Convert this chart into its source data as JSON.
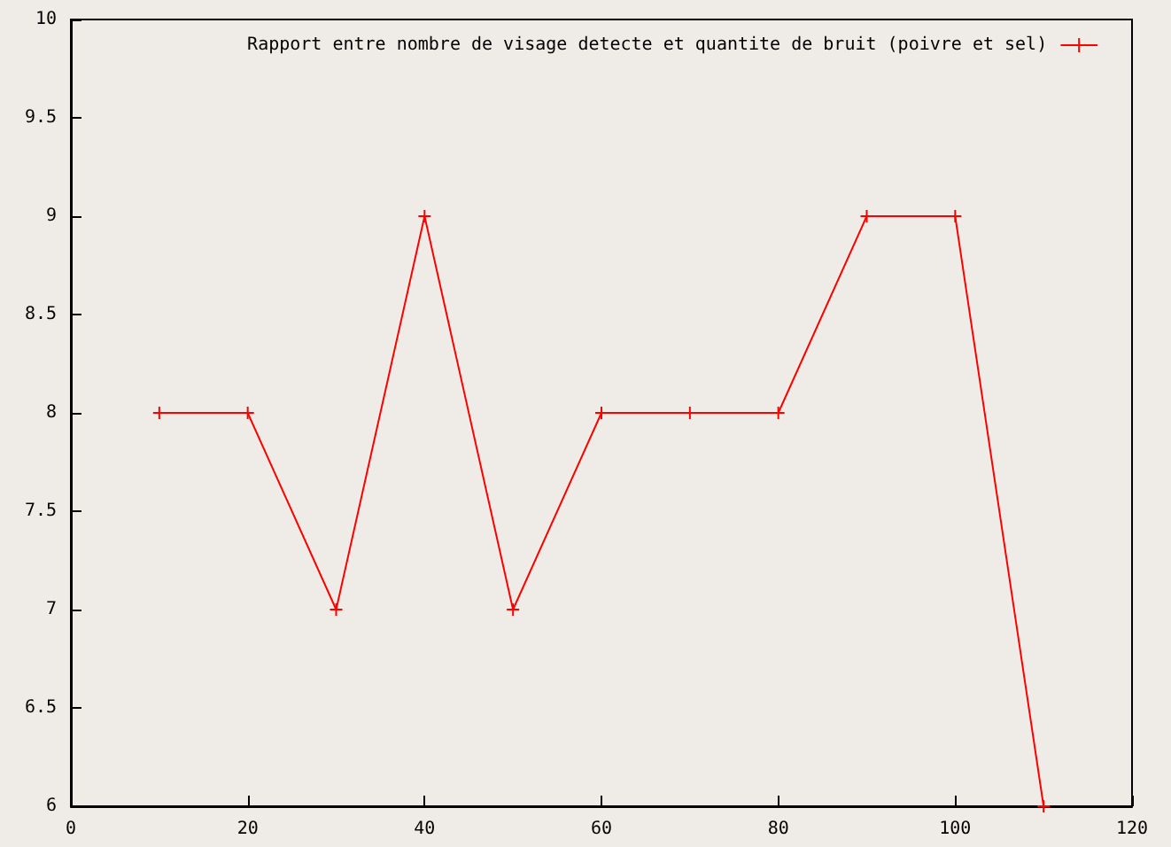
{
  "chart_data": {
    "type": "line",
    "x": [
      10,
      20,
      30,
      40,
      50,
      60,
      70,
      80,
      90,
      100,
      110
    ],
    "series": [
      {
        "name": "Rapport entre nombre de visage detecte et quantite de bruit (poivre et sel)",
        "color": "#ff0000",
        "values": [
          8,
          8,
          7,
          9,
          7,
          8,
          8,
          8,
          9,
          9,
          6
        ]
      }
    ],
    "xlim": [
      0,
      120
    ],
    "xticks": [
      0,
      20,
      40,
      60,
      80,
      100,
      120
    ],
    "ylim": [
      6,
      10
    ],
    "yticks": [
      6,
      6.5,
      7,
      7.5,
      8,
      8.5,
      9,
      9.5,
      10
    ],
    "grid": false,
    "legend": "top right",
    "marker": "cross",
    "line_style": "solid"
  }
}
